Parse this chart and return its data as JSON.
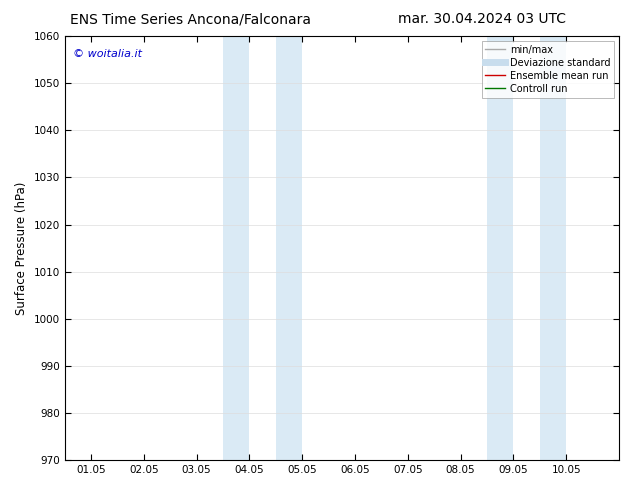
{
  "title_left": "ENS Time Series Ancona/Falconara",
  "title_right": "mar. 30.04.2024 03 UTC",
  "ylabel": "Surface Pressure (hPa)",
  "ylim": [
    970,
    1060
  ],
  "yticks": [
    970,
    980,
    990,
    1000,
    1010,
    1020,
    1030,
    1040,
    1050,
    1060
  ],
  "xlim": [
    0.0,
    10.5
  ],
  "xtick_labels": [
    "01.05",
    "02.05",
    "03.05",
    "04.05",
    "05.05",
    "06.05",
    "07.05",
    "08.05",
    "09.05",
    "10.05"
  ],
  "xtick_positions": [
    0.5,
    1.5,
    2.5,
    3.5,
    4.5,
    5.5,
    6.5,
    7.5,
    8.5,
    9.5
  ],
  "shaded_bands": [
    {
      "xmin": 3.0,
      "xmax": 3.5,
      "color": "#daeaf5"
    },
    {
      "xmin": 4.0,
      "xmax": 4.5,
      "color": "#daeaf5"
    },
    {
      "xmin": 8.0,
      "xmax": 8.5,
      "color": "#daeaf5"
    },
    {
      "xmin": 9.0,
      "xmax": 9.5,
      "color": "#daeaf5"
    }
  ],
  "watermark": "© woitalia.it",
  "watermark_color": "#0000cc",
  "legend_items": [
    {
      "label": "min/max",
      "color": "#aaaaaa",
      "lw": 1.0
    },
    {
      "label": "Deviazione standard",
      "color": "#c8dded",
      "lw": 5
    },
    {
      "label": "Ensemble mean run",
      "color": "#cc0000",
      "lw": 1.0
    },
    {
      "label": "Controll run",
      "color": "#007700",
      "lw": 1.0
    }
  ],
  "bg_color": "#ffffff",
  "title_fontsize": 10,
  "tick_fontsize": 7.5,
  "ylabel_fontsize": 8.5
}
